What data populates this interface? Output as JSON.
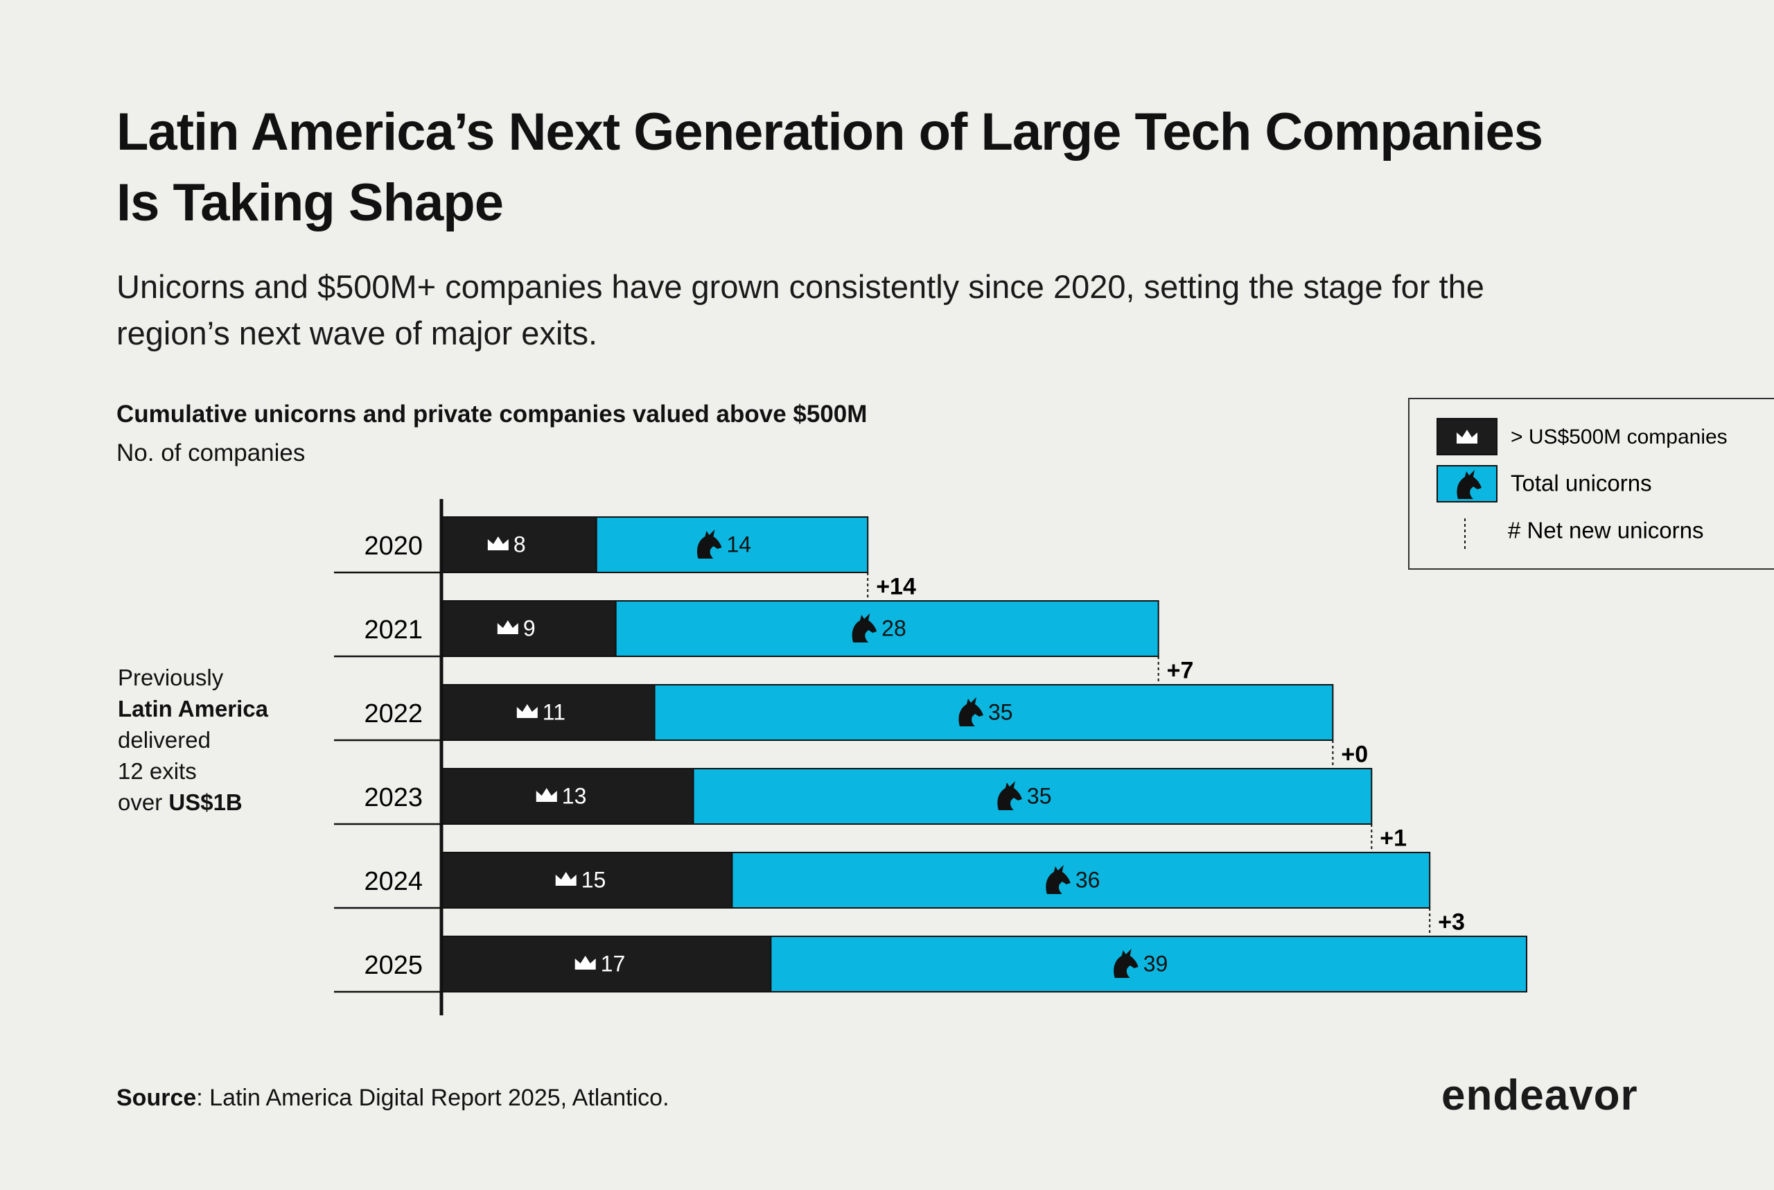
{
  "chart_data": {
    "type": "stacked-bar-horizontal",
    "title": "Latin America’s Next Generation of Large Tech Companies Is Taking Shape",
    "subtitle": "Unicorns and $500M+ companies have grown consistently since 2020, setting the stage for the region’s next wave of major exits.",
    "chart_title": "Cumulative unicorns and private companies valued above $500M",
    "axis_label": "No. of companies",
    "categories": [
      "2020",
      "2021",
      "2022",
      "2023",
      "2024",
      "2025"
    ],
    "series": [
      {
        "name": "> US$500M companies",
        "color": "#1c1c1c",
        "values": [
          8,
          9,
          11,
          13,
          15,
          17
        ]
      },
      {
        "name": "Total unicorns",
        "color": "#0bb7e0",
        "values": [
          14,
          28,
          35,
          35,
          36,
          39
        ]
      }
    ],
    "net_new": {
      "name": "# Net new unicorns",
      "categories": [
        "2021",
        "2022",
        "2023",
        "2024",
        "2025"
      ],
      "values": [
        14,
        7,
        0,
        1,
        3
      ],
      "value_labels": [
        "+14",
        "+7",
        "+0",
        "+1",
        "+3"
      ]
    },
    "annotation": [
      "Previously",
      "Latin America",
      "delivered",
      "12 exits",
      "over",
      "US$1B"
    ],
    "source_label": "Source",
    "source_text": ": Latin America Digital Report 2025, Atlantico.",
    "logo": "endeavor"
  }
}
